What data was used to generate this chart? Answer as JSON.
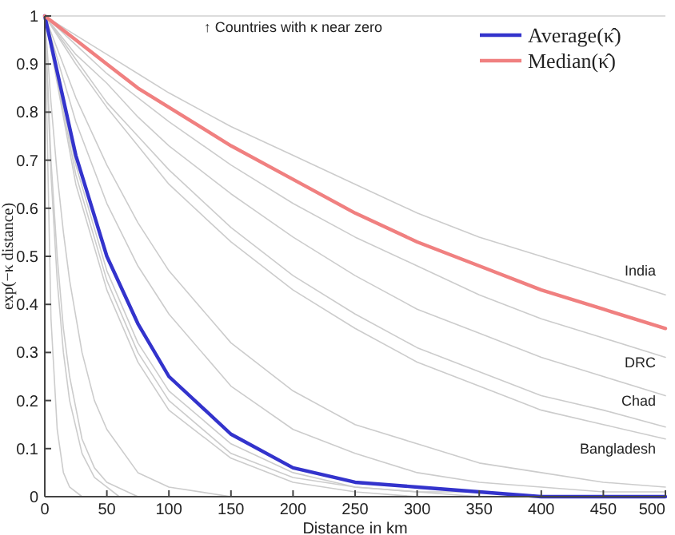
{
  "chart_data": {
    "type": "line",
    "xlabel": "Distance in km",
    "ylabel": "exp(−κ distance)",
    "xlim": [
      0,
      500
    ],
    "ylim": [
      0,
      1
    ],
    "xticks": [
      0,
      50,
      100,
      150,
      200,
      250,
      300,
      350,
      400,
      450,
      500
    ],
    "yticks": [
      0,
      0.1,
      0.2,
      0.3,
      0.4,
      0.5,
      0.6,
      0.7,
      0.8,
      0.9,
      1
    ],
    "grid": false,
    "legend": "top right",
    "marker": "none",
    "line_style": "solid",
    "annotations": [
      "↑ Countries with κ near zero",
      "India",
      "DRC",
      "Chad",
      "Bangladesh"
    ],
    "series": [
      {
        "color": "#cccccc",
        "x": [
          0,
          25,
          50,
          75,
          100,
          150,
          200,
          250,
          300,
          350,
          400,
          450,
          500
        ],
        "values": [
          1,
          0.96,
          0.92,
          0.88,
          0.84,
          0.77,
          0.71,
          0.65,
          0.59,
          0.54,
          0.5,
          0.46,
          0.42
        ]
      },
      {
        "color": "#cccccc",
        "x": [
          0,
          25,
          50,
          75,
          100,
          150,
          200,
          250,
          300,
          350,
          400,
          450,
          500
        ],
        "values": [
          1,
          0.94,
          0.88,
          0.83,
          0.78,
          0.69,
          0.61,
          0.54,
          0.48,
          0.42,
          0.37,
          0.33,
          0.29
        ]
      },
      {
        "color": "#cccccc",
        "x": [
          0,
          25,
          50,
          75,
          100,
          150,
          200,
          250,
          300,
          350,
          400,
          450,
          500
        ],
        "values": [
          1,
          0.92,
          0.86,
          0.79,
          0.73,
          0.63,
          0.54,
          0.46,
          0.39,
          0.34,
          0.29,
          0.25,
          0.21
        ]
      },
      {
        "color": "#cccccc",
        "x": [
          0,
          25,
          50,
          75,
          100,
          150,
          200,
          250,
          300,
          350,
          400,
          450,
          500
        ],
        "values": [
          1,
          0.91,
          0.82,
          0.75,
          0.68,
          0.56,
          0.46,
          0.38,
          0.31,
          0.26,
          0.21,
          0.18,
          0.145
        ]
      },
      {
        "color": "#cccccc",
        "x": [
          0,
          25,
          50,
          75,
          100,
          150,
          200,
          250,
          300,
          350,
          400,
          450,
          500
        ],
        "values": [
          1,
          0.9,
          0.81,
          0.73,
          0.65,
          0.53,
          0.43,
          0.35,
          0.28,
          0.23,
          0.18,
          0.15,
          0.12
        ]
      },
      {
        "color": "#cccccc",
        "x": [
          0,
          25,
          50,
          75,
          100,
          150,
          200,
          250,
          300,
          350,
          400,
          450,
          500
        ],
        "values": [
          1,
          0.83,
          0.69,
          0.57,
          0.47,
          0.32,
          0.22,
          0.15,
          0.11,
          0.07,
          0.05,
          0.03,
          0.02
        ]
      },
      {
        "color": "#cccccc",
        "x": [
          0,
          25,
          50,
          75,
          100,
          150,
          200,
          250,
          300,
          350,
          400,
          450,
          500
        ],
        "values": [
          1,
          0.78,
          0.61,
          0.48,
          0.38,
          0.23,
          0.14,
          0.09,
          0.05,
          0.03,
          0.02,
          0.01,
          0.01
        ]
      },
      {
        "color": "#cccccc",
        "x": [
          0,
          25,
          50,
          75,
          100,
          150,
          200,
          250,
          300,
          350,
          400
        ],
        "values": [
          1,
          0.69,
          0.47,
          0.32,
          0.22,
          0.11,
          0.05,
          0.02,
          0.01,
          0.01,
          0
        ]
      },
      {
        "color": "#cccccc",
        "x": [
          0,
          25,
          50,
          75,
          100,
          150,
          200,
          250,
          300,
          350
        ],
        "values": [
          1,
          0.67,
          0.45,
          0.3,
          0.2,
          0.09,
          0.04,
          0.02,
          0.01,
          0
        ]
      },
      {
        "color": "#cccccc",
        "x": [
          0,
          25,
          50,
          75,
          100,
          150,
          200,
          250,
          300
        ],
        "values": [
          1,
          0.65,
          0.43,
          0.28,
          0.18,
          0.08,
          0.03,
          0.01,
          0
        ]
      },
      {
        "color": "#cccccc",
        "x": [
          0,
          5,
          10,
          15,
          20,
          30,
          40,
          50,
          75,
          100,
          150
        ],
        "values": [
          1,
          0.82,
          0.67,
          0.55,
          0.45,
          0.3,
          0.2,
          0.14,
          0.05,
          0.02,
          0
        ]
      },
      {
        "color": "#cccccc",
        "x": [
          0,
          5,
          10,
          15,
          20,
          30,
          40,
          50,
          75
        ],
        "values": [
          1,
          0.7,
          0.5,
          0.35,
          0.25,
          0.12,
          0.06,
          0.03,
          0
        ]
      },
      {
        "color": "#cccccc",
        "x": [
          0,
          5,
          10,
          15,
          20,
          30,
          40,
          50,
          60
        ],
        "values": [
          1,
          0.67,
          0.45,
          0.3,
          0.2,
          0.09,
          0.04,
          0.02,
          0
        ]
      },
      {
        "color": "#cccccc",
        "x": [
          0,
          5,
          10,
          15,
          20,
          30
        ],
        "values": [
          1,
          0.37,
          0.14,
          0.05,
          0.02,
          0
        ]
      },
      {
        "name": "Average(κ̂)",
        "color": "#3333cc",
        "x": [
          0,
          25,
          50,
          75,
          100,
          150,
          200,
          250,
          300,
          350,
          400,
          450,
          500
        ],
        "values": [
          1,
          0.71,
          0.5,
          0.36,
          0.25,
          0.13,
          0.06,
          0.03,
          0.02,
          0.01,
          0,
          0,
          0
        ]
      },
      {
        "name": "Median(κ̂)",
        "color": "#f08080",
        "x": [
          0,
          25,
          50,
          75,
          100,
          150,
          200,
          250,
          300,
          350,
          400,
          450,
          500
        ],
        "values": [
          1,
          0.95,
          0.9,
          0.85,
          0.81,
          0.73,
          0.66,
          0.59,
          0.53,
          0.48,
          0.43,
          0.39,
          0.35
        ]
      }
    ]
  }
}
